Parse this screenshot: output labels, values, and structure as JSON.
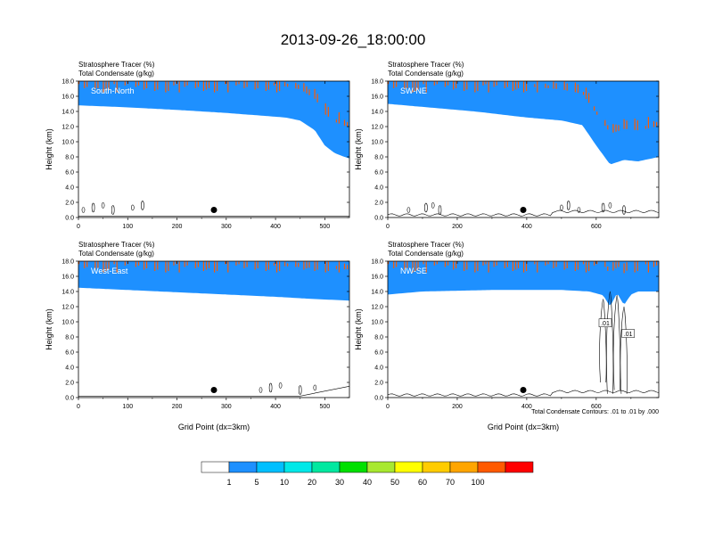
{
  "title": "2013-09-26_18:00:00",
  "colors": {
    "levels": [
      "#ffffff",
      "#1e90ff",
      "#00bfff",
      "#00e8e8",
      "#00e8a0",
      "#00e000",
      "#a8e830",
      "#ffff00",
      "#ffcc00",
      "#ffa500",
      "#ff5a00",
      "#ff0000"
    ]
  },
  "colorbar": {
    "labels": [
      "1",
      "5",
      "10",
      "20",
      "30",
      "40",
      "50",
      "60",
      "70",
      "100"
    ]
  },
  "chart_data": [
    {
      "type": "heatmap",
      "panel_label": "South-North",
      "field_labels": [
        "Stratosphere Tracer   (%)",
        "Total Condensate   (g/kg)"
      ],
      "ylabel": "Height (km)",
      "xlabel": "",
      "xlim": [
        0,
        550
      ],
      "ylim": [
        0,
        18
      ],
      "xticks": [
        0,
        100,
        200,
        300,
        400,
        500
      ],
      "xtick_labels": [
        "0",
        "100",
        "200",
        "300",
        "400",
        "500"
      ],
      "yticks": [
        0,
        2,
        4,
        6,
        8,
        10,
        12,
        14,
        16,
        18
      ],
      "ytick_labels": [
        "0.0",
        "2.0",
        "4.0",
        "6.0",
        "8.0",
        "10.0",
        "12.0",
        "14.0",
        "16.0",
        "18.0"
      ],
      "marker": {
        "x": 275,
        "y": 1.0
      },
      "tracer_profile": {
        "x": [
          0,
          80,
          200,
          300,
          380,
          420,
          450,
          480,
          500,
          520,
          540,
          550
        ],
        "base_km": [
          14.8,
          14.6,
          14.2,
          13.8,
          13.4,
          13.2,
          12.8,
          11.5,
          9.5,
          8.5,
          8.0,
          7.8
        ]
      },
      "contour_note": ""
    },
    {
      "type": "heatmap",
      "panel_label": "SW-NE",
      "field_labels": [
        "Stratosphere Tracer   (%)",
        "Total Condensate   (g/kg)"
      ],
      "ylabel": "Height (km)",
      "xlabel": "",
      "xlim": [
        0,
        780
      ],
      "ylim": [
        0,
        18
      ],
      "xticks": [
        0,
        200,
        400,
        600
      ],
      "xtick_labels": [
        "0",
        "200",
        "400",
        "600"
      ],
      "yticks": [
        0,
        2,
        4,
        6,
        8,
        10,
        12,
        14,
        16,
        18
      ],
      "ytick_labels": [
        "0.0",
        "2.0",
        "4.0",
        "6.0",
        "8.0",
        "10.0",
        "12.0",
        "14.0",
        "16.0",
        "18.0"
      ],
      "marker": {
        "x": 390,
        "y": 1.0
      },
      "tracer_profile": {
        "x": [
          0,
          100,
          250,
          400,
          500,
          560,
          600,
          640,
          680,
          720,
          760,
          780
        ],
        "base_km": [
          15.0,
          14.6,
          14.0,
          13.2,
          12.8,
          12.2,
          9.5,
          7.0,
          7.6,
          7.4,
          7.8,
          8.0
        ]
      },
      "contour_note": ""
    },
    {
      "type": "heatmap",
      "panel_label": "West-East",
      "field_labels": [
        "Stratosphere Tracer   (%)",
        "Total Condensate   (g/kg)"
      ],
      "ylabel": "Height (km)",
      "xlabel": "Grid Point (dx=3km)",
      "xlim": [
        0,
        550
      ],
      "ylim": [
        0,
        18
      ],
      "xticks": [
        0,
        100,
        200,
        300,
        400,
        500
      ],
      "xtick_labels": [
        "0",
        "100",
        "200",
        "300",
        "400",
        "500"
      ],
      "yticks": [
        0,
        2,
        4,
        6,
        8,
        10,
        12,
        14,
        16,
        18
      ],
      "ytick_labels": [
        "0.0",
        "2.0",
        "4.0",
        "6.0",
        "8.0",
        "10.0",
        "12.0",
        "14.0",
        "16.0",
        "18.0"
      ],
      "marker": {
        "x": 275,
        "y": 1.0
      },
      "tracer_profile": {
        "x": [
          0,
          100,
          200,
          300,
          400,
          480,
          550
        ],
        "base_km": [
          14.5,
          14.2,
          13.9,
          13.6,
          13.3,
          13.0,
          12.8
        ]
      },
      "contour_note": ""
    },
    {
      "type": "heatmap",
      "panel_label": "NW-SE",
      "field_labels": [
        "Stratosphere Tracer   (%)",
        "Total Condensate   (g/kg)"
      ],
      "ylabel": "Height (km)",
      "xlabel": "Grid Point (dx=3km)",
      "xlim": [
        0,
        780
      ],
      "ylim": [
        0,
        18
      ],
      "xticks": [
        0,
        200,
        400,
        600
      ],
      "xtick_labels": [
        "0",
        "200",
        "400",
        "600"
      ],
      "yticks": [
        0,
        2,
        4,
        6,
        8,
        10,
        12,
        14,
        16,
        18
      ],
      "ytick_labels": [
        "0.0",
        "2.0",
        "4.0",
        "6.0",
        "8.0",
        "10.0",
        "12.0",
        "14.0",
        "16.0",
        "18.0"
      ],
      "marker": {
        "x": 390,
        "y": 1.0
      },
      "tracer_profile": {
        "x": [
          0,
          100,
          200,
          300,
          400,
          500,
          580,
          620,
          640,
          660,
          680,
          700,
          720,
          760,
          780
        ],
        "base_km": [
          13.6,
          14.0,
          14.1,
          14.2,
          14.2,
          14.2,
          14.0,
          13.5,
          12.0,
          13.8,
          12.2,
          13.6,
          14.0,
          14.0,
          14.0
        ]
      },
      "contour_labels": [
        ".01",
        ".01"
      ],
      "contour_note": "Total Condensate Contours: .01 to .01 by .000"
    }
  ]
}
